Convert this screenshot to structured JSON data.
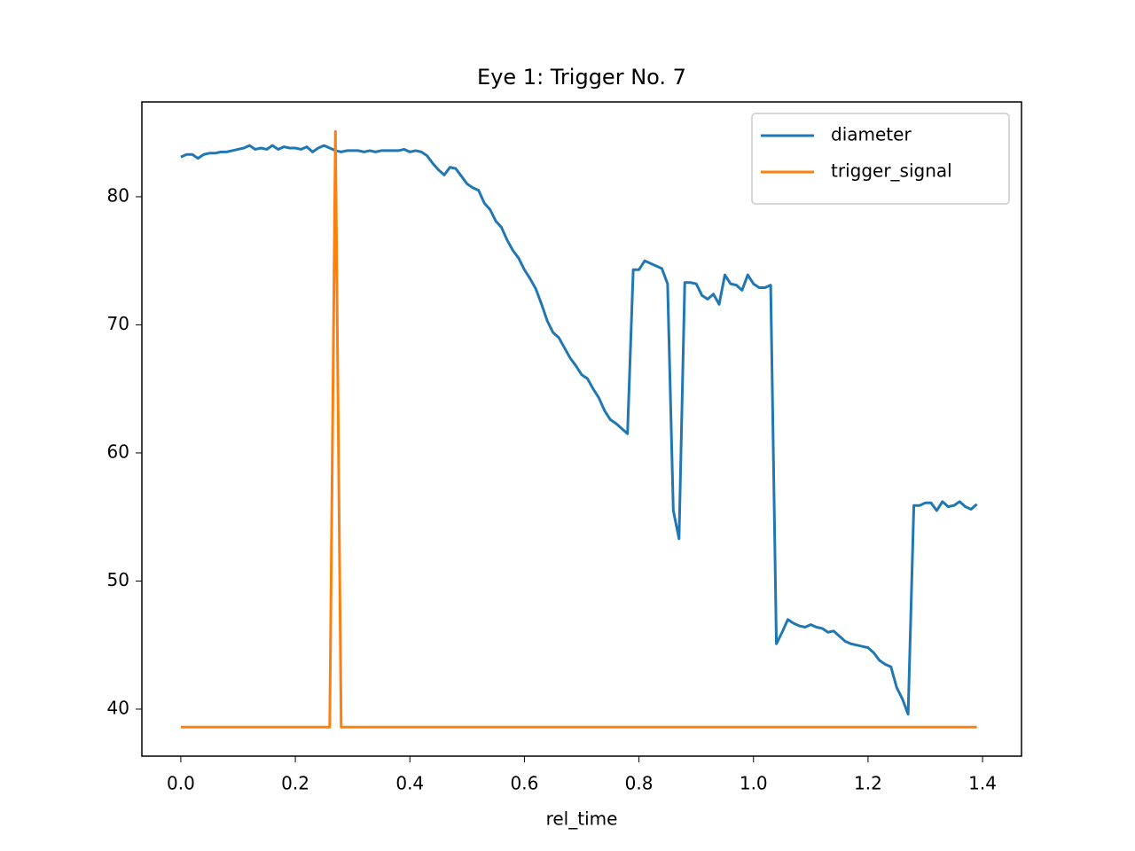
{
  "chart_data": {
    "type": "line",
    "title": "Eye 1: Trigger No. 7",
    "xlabel": "rel_time",
    "x": [
      0.0,
      0.01,
      0.02,
      0.03,
      0.04,
      0.05,
      0.06,
      0.07,
      0.08,
      0.09,
      0.1,
      0.11,
      0.12,
      0.13,
      0.14,
      0.15,
      0.16,
      0.17,
      0.18,
      0.19,
      0.2,
      0.21,
      0.22,
      0.23,
      0.24,
      0.25,
      0.26,
      0.27,
      0.28,
      0.29,
      0.3,
      0.31,
      0.32,
      0.33,
      0.34,
      0.35,
      0.36,
      0.37,
      0.38,
      0.39,
      0.4,
      0.41,
      0.42,
      0.43,
      0.44,
      0.45,
      0.46,
      0.47,
      0.48,
      0.49,
      0.5,
      0.51,
      0.52,
      0.53,
      0.54,
      0.55,
      0.56,
      0.57,
      0.58,
      0.59,
      0.6,
      0.61,
      0.62,
      0.63,
      0.64,
      0.65,
      0.66,
      0.67,
      0.68,
      0.69,
      0.7,
      0.71,
      0.72,
      0.73,
      0.74,
      0.75,
      0.76,
      0.77,
      0.78,
      0.79,
      0.8,
      0.81,
      0.82,
      0.83,
      0.84,
      0.85,
      0.86,
      0.87,
      0.88,
      0.89,
      0.9,
      0.91,
      0.92,
      0.93,
      0.94,
      0.95,
      0.96,
      0.97,
      0.98,
      0.99,
      1.0,
      1.01,
      1.02,
      1.03,
      1.04,
      1.05,
      1.06,
      1.07,
      1.08,
      1.09,
      1.1,
      1.11,
      1.12,
      1.13,
      1.14,
      1.15,
      1.16,
      1.17,
      1.18,
      1.19,
      1.2,
      1.21,
      1.22,
      1.23,
      1.24,
      1.25,
      1.26,
      1.27,
      1.28,
      1.29,
      1.3,
      1.31,
      1.32,
      1.33,
      1.34,
      1.35,
      1.36,
      1.37,
      1.38,
      1.39
    ],
    "series": [
      {
        "name": "diameter",
        "color": "#1f77b4",
        "values": [
          83.1,
          83.3,
          83.3,
          83.0,
          83.3,
          83.4,
          83.4,
          83.5,
          83.5,
          83.6,
          83.7,
          83.8,
          84.0,
          83.7,
          83.8,
          83.7,
          84.0,
          83.7,
          83.9,
          83.8,
          83.8,
          83.7,
          83.9,
          83.5,
          83.8,
          84.0,
          83.8,
          83.6,
          83.5,
          83.6,
          83.6,
          83.6,
          83.5,
          83.6,
          83.5,
          83.6,
          83.6,
          83.6,
          83.6,
          83.7,
          83.5,
          83.6,
          83.5,
          83.2,
          82.6,
          82.1,
          81.7,
          82.3,
          82.2,
          81.6,
          81.0,
          80.7,
          80.5,
          79.5,
          79.0,
          78.1,
          77.6,
          76.6,
          75.8,
          75.2,
          74.3,
          73.6,
          72.8,
          71.6,
          70.3,
          69.4,
          69.0,
          68.2,
          67.4,
          66.8,
          66.1,
          65.8,
          65.0,
          64.3,
          63.3,
          62.6,
          62.3,
          61.9,
          61.5,
          74.3,
          74.3,
          75.0,
          74.8,
          74.6,
          74.4,
          73.2,
          55.5,
          53.3,
          73.3,
          73.3,
          73.2,
          72.3,
          72.0,
          72.4,
          71.6,
          73.9,
          73.2,
          73.1,
          72.7,
          73.9,
          73.2,
          72.9,
          72.9,
          73.1,
          45.1,
          46.0,
          47.0,
          46.7,
          46.5,
          46.4,
          46.6,
          46.4,
          46.3,
          46.0,
          46.1,
          45.7,
          45.3,
          45.1,
          45.0,
          44.9,
          44.8,
          44.4,
          43.8,
          43.5,
          43.3,
          41.7,
          40.8,
          39.6,
          55.9,
          55.9,
          56.1,
          56.1,
          55.5,
          56.2,
          55.8,
          55.9,
          56.2,
          55.8,
          55.6,
          56.0
        ]
      },
      {
        "name": "trigger_signal",
        "color": "#ff7f0e",
        "values": [
          38.6,
          38.6,
          38.6,
          38.6,
          38.6,
          38.6,
          38.6,
          38.6,
          38.6,
          38.6,
          38.6,
          38.6,
          38.6,
          38.6,
          38.6,
          38.6,
          38.6,
          38.6,
          38.6,
          38.6,
          38.6,
          38.6,
          38.6,
          38.6,
          38.6,
          38.6,
          38.6,
          85.1,
          38.6,
          38.6,
          38.6,
          38.6,
          38.6,
          38.6,
          38.6,
          38.6,
          38.6,
          38.6,
          38.6,
          38.6,
          38.6,
          38.6,
          38.6,
          38.6,
          38.6,
          38.6,
          38.6,
          38.6,
          38.6,
          38.6,
          38.6,
          38.6,
          38.6,
          38.6,
          38.6,
          38.6,
          38.6,
          38.6,
          38.6,
          38.6,
          38.6,
          38.6,
          38.6,
          38.6,
          38.6,
          38.6,
          38.6,
          38.6,
          38.6,
          38.6,
          38.6,
          38.6,
          38.6,
          38.6,
          38.6,
          38.6,
          38.6,
          38.6,
          38.6,
          38.6,
          38.6,
          38.6,
          38.6,
          38.6,
          38.6,
          38.6,
          38.6,
          38.6,
          38.6,
          38.6,
          38.6,
          38.6,
          38.6,
          38.6,
          38.6,
          38.6,
          38.6,
          38.6,
          38.6,
          38.6,
          38.6,
          38.6,
          38.6,
          38.6,
          38.6,
          38.6,
          38.6,
          38.6,
          38.6,
          38.6,
          38.6,
          38.6,
          38.6,
          38.6,
          38.6,
          38.6,
          38.6,
          38.6,
          38.6,
          38.6,
          38.6,
          38.6,
          38.6,
          38.6,
          38.6,
          38.6,
          38.6,
          38.6,
          38.6,
          38.6,
          38.6,
          38.6,
          38.6,
          38.6,
          38.6,
          38.6,
          38.6,
          38.6,
          38.6,
          38.6
        ]
      }
    ],
    "xlim": [
      -0.068,
      1.468
    ],
    "ylim": [
      36.33,
      87.4
    ],
    "xticks": [
      {
        "value": 0,
        "label": "0.0"
      },
      0.2,
      0.4,
      0.6,
      0.8,
      {
        "value": 1,
        "label": "1.0"
      },
      1.2,
      1.4
    ],
    "yticks": [
      40,
      50,
      60,
      70,
      80
    ],
    "grid": false,
    "legend": "upper right"
  }
}
